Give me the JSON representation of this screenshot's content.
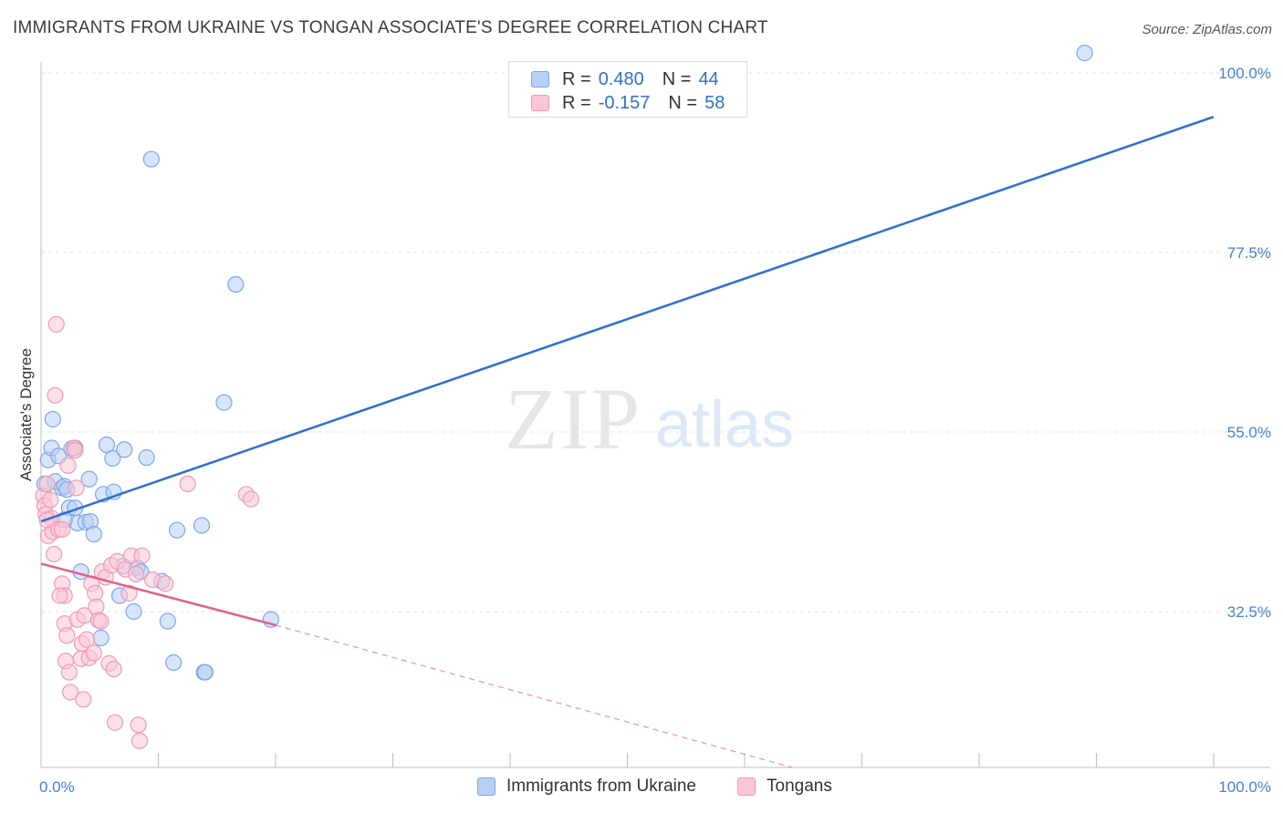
{
  "title": "IMMIGRANTS FROM UKRAINE VS TONGAN ASSOCIATE'S DEGREE CORRELATION CHART",
  "source": "Source: ZipAtlas.com",
  "watermark": {
    "zip": "ZIP",
    "atlas": "atlas"
  },
  "legend_top": {
    "r_label": "R =",
    "n_label": "N =",
    "series": [
      {
        "r": "0.480",
        "n": "44"
      },
      {
        "r": "-0.157",
        "n": "58"
      }
    ]
  },
  "colors": {
    "blue_fill": "#b8d0f4",
    "blue_stroke": "#7ea6e8",
    "blue_line": "#2f6fd1",
    "pink_fill": "#f9c6d6",
    "pink_stroke": "#ee9bb5",
    "pink_line": "#e0608c",
    "grid": "#e3e3e3",
    "axis_text": "#4a7fd6"
  },
  "chart_data": {
    "type": "scatter",
    "title": "IMMIGRANTS FROM UKRAINE VS TONGAN ASSOCIATE'S DEGREE CORRELATION CHART",
    "xlabel": "",
    "ylabel": "Associate's Degree",
    "xlim": [
      0,
      100
    ],
    "ylim": [
      13,
      103
    ],
    "x_tick_labels": [
      "0.0%",
      "100.0%"
    ],
    "y_ticks": [
      32.5,
      55.0,
      77.5,
      100.0
    ],
    "y_tick_labels": [
      "32.5%",
      "55.0%",
      "77.5%",
      "100.0%"
    ],
    "grid": true,
    "legend_position": "bottom",
    "series": [
      {
        "name": "Immigrants from Ukraine",
        "r": 0.48,
        "n": 44,
        "trend": {
          "x0": 0,
          "y0": 43.8,
          "x1": 100,
          "y1": 94.5
        },
        "points": [
          [
            0.3,
            48.5
          ],
          [
            0.6,
            51.5
          ],
          [
            0.9,
            53.0
          ],
          [
            1.0,
            56.6
          ],
          [
            1.2,
            48.8
          ],
          [
            1.5,
            52.0
          ],
          [
            1.8,
            48.0
          ],
          [
            2.0,
            48.2
          ],
          [
            2.2,
            47.8
          ],
          [
            2.4,
            45.5
          ],
          [
            2.6,
            52.9
          ],
          [
            2.9,
            53.0
          ],
          [
            2.9,
            45.5
          ],
          [
            3.1,
            43.6
          ],
          [
            3.4,
            37.5
          ],
          [
            3.8,
            43.7
          ],
          [
            4.1,
            49.1
          ],
          [
            4.2,
            43.8
          ],
          [
            4.5,
            42.2
          ],
          [
            5.1,
            29.2
          ],
          [
            5.3,
            47.2
          ],
          [
            5.6,
            53.4
          ],
          [
            6.1,
            51.7
          ],
          [
            6.2,
            47.5
          ],
          [
            6.7,
            34.5
          ],
          [
            7.0,
            38.2
          ],
          [
            7.1,
            52.8
          ],
          [
            7.9,
            32.5
          ],
          [
            8.2,
            38.0
          ],
          [
            8.5,
            37.5
          ],
          [
            9.0,
            51.8
          ],
          [
            9.4,
            89.2
          ],
          [
            10.3,
            36.3
          ],
          [
            10.8,
            31.3
          ],
          [
            11.3,
            26.1
          ],
          [
            11.6,
            42.7
          ],
          [
            13.7,
            43.3
          ],
          [
            13.9,
            24.9
          ],
          [
            14.0,
            24.9
          ],
          [
            15.6,
            58.7
          ],
          [
            16.6,
            73.5
          ],
          [
            19.6,
            31.5
          ],
          [
            89.0,
            102.5
          ],
          [
            2.0,
            44.0
          ]
        ]
      },
      {
        "name": "Tongans",
        "r": -0.157,
        "n": 58,
        "trend": {
          "x0": 0,
          "y0": 38.5,
          "x1": 20,
          "y1": 30.8
        },
        "trend_dashed": {
          "x0": 20,
          "y0": 30.8,
          "x1": 64,
          "y1": 13.0
        },
        "points": [
          [
            0.2,
            47.0
          ],
          [
            0.3,
            45.8
          ],
          [
            0.4,
            44.7
          ],
          [
            0.5,
            48.5
          ],
          [
            0.6,
            42.0
          ],
          [
            0.8,
            46.5
          ],
          [
            0.9,
            44.2
          ],
          [
            1.0,
            42.5
          ],
          [
            1.1,
            39.7
          ],
          [
            1.2,
            59.6
          ],
          [
            1.3,
            68.5
          ],
          [
            1.5,
            42.8
          ],
          [
            1.8,
            42.8
          ],
          [
            1.8,
            36.0
          ],
          [
            2.0,
            34.5
          ],
          [
            2.0,
            31.0
          ],
          [
            2.1,
            26.3
          ],
          [
            2.2,
            29.5
          ],
          [
            2.3,
            50.8
          ],
          [
            2.4,
            24.9
          ],
          [
            2.5,
            22.4
          ],
          [
            2.8,
            53.0
          ],
          [
            2.9,
            52.7
          ],
          [
            3.0,
            48.0
          ],
          [
            3.1,
            31.5
          ],
          [
            3.4,
            26.6
          ],
          [
            3.5,
            28.5
          ],
          [
            3.6,
            21.5
          ],
          [
            3.7,
            32.0
          ],
          [
            3.9,
            29.0
          ],
          [
            4.1,
            26.7
          ],
          [
            4.3,
            36.0
          ],
          [
            4.5,
            27.3
          ],
          [
            4.6,
            34.8
          ],
          [
            4.7,
            33.1
          ],
          [
            4.9,
            31.4
          ],
          [
            5.1,
            31.3
          ],
          [
            5.2,
            37.5
          ],
          [
            5.5,
            36.8
          ],
          [
            5.8,
            26.0
          ],
          [
            6.0,
            38.3
          ],
          [
            6.2,
            25.3
          ],
          [
            6.3,
            18.6
          ],
          [
            6.5,
            38.8
          ],
          [
            7.2,
            37.8
          ],
          [
            7.5,
            34.8
          ],
          [
            7.7,
            39.5
          ],
          [
            8.1,
            37.2
          ],
          [
            8.3,
            18.3
          ],
          [
            8.4,
            16.3
          ],
          [
            8.6,
            39.5
          ],
          [
            9.5,
            36.5
          ],
          [
            10.6,
            36.0
          ],
          [
            12.5,
            48.5
          ],
          [
            17.5,
            47.2
          ],
          [
            17.9,
            46.6
          ],
          [
            0.5,
            44.0
          ],
          [
            1.6,
            34.5
          ]
        ]
      }
    ]
  }
}
